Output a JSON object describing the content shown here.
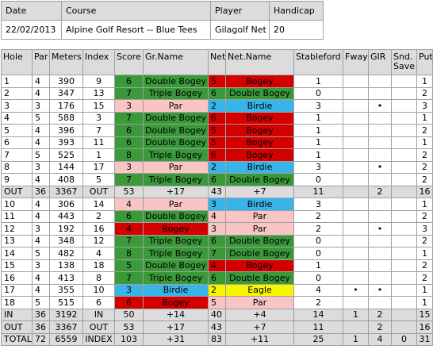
{
  "info": {
    "headers": [
      "Date",
      "Course",
      "Player",
      "Handicap"
    ],
    "values": [
      "22/02/2013",
      "Alpine Golf Resort -- Blue Tees",
      "Gilagolf Net",
      "20"
    ]
  },
  "columns": [
    "Hole",
    "Par",
    "Meters",
    "Index",
    "Score",
    "Gr.Name",
    "Net",
    "Net.Name",
    "Stableford",
    "Fway",
    "GIR",
    "Snd. Save",
    "Putt"
  ],
  "rows": [
    {
      "hole": "1",
      "par": "4",
      "meters": "390",
      "index": "9",
      "score": "6",
      "gr_name": "Double Bogey",
      "net": "5",
      "net_name": "Bogey",
      "stableford": "1",
      "fway": "",
      "gir": "",
      "snd": "",
      "putt": "1",
      "sc": "g",
      "nc": "rd"
    },
    {
      "hole": "2",
      "par": "4",
      "meters": "347",
      "index": "13",
      "score": "7",
      "gr_name": "Triple Bogey",
      "net": "6",
      "net_name": "Double Bogey",
      "stableford": "0",
      "fway": "",
      "gir": "",
      "snd": "",
      "putt": "2",
      "sc": "g",
      "nc": "g"
    },
    {
      "hole": "3",
      "par": "3",
      "meters": "176",
      "index": "15",
      "score": "3",
      "gr_name": "Par",
      "net": "2",
      "net_name": "Birdie",
      "stableford": "3",
      "fway": "",
      "gir": "•",
      "snd": "",
      "putt": "3",
      "sc": "pk",
      "nc": "bl"
    },
    {
      "hole": "4",
      "par": "5",
      "meters": "588",
      "index": "3",
      "score": "7",
      "gr_name": "Double Bogey",
      "net": "6",
      "net_name": "Bogey",
      "stableford": "1",
      "fway": "",
      "gir": "",
      "snd": "",
      "putt": "1",
      "sc": "g",
      "nc": "rd"
    },
    {
      "hole": "5",
      "par": "4",
      "meters": "396",
      "index": "7",
      "score": "6",
      "gr_name": "Double Bogey",
      "net": "5",
      "net_name": "Bogey",
      "stableford": "1",
      "fway": "",
      "gir": "",
      "snd": "",
      "putt": "2",
      "sc": "g",
      "nc": "rd"
    },
    {
      "hole": "6",
      "par": "4",
      "meters": "393",
      "index": "11",
      "score": "6",
      "gr_name": "Double Bogey",
      "net": "5",
      "net_name": "Bogey",
      "stableford": "1",
      "fway": "",
      "gir": "",
      "snd": "",
      "putt": "1",
      "sc": "g",
      "nc": "rd"
    },
    {
      "hole": "7",
      "par": "5",
      "meters": "525",
      "index": "1",
      "score": "8",
      "gr_name": "Triple Bogey",
      "net": "6",
      "net_name": "Bogey",
      "stableford": "1",
      "fway": "",
      "gir": "",
      "snd": "",
      "putt": "2",
      "sc": "g",
      "nc": "rd"
    },
    {
      "hole": "8",
      "par": "3",
      "meters": "144",
      "index": "17",
      "score": "3",
      "gr_name": "Par",
      "net": "2",
      "net_name": "Birdie",
      "stableford": "3",
      "fway": "",
      "gir": "•",
      "snd": "",
      "putt": "2",
      "sc": "pk",
      "nc": "bl"
    },
    {
      "hole": "9",
      "par": "4",
      "meters": "408",
      "index": "5",
      "score": "7",
      "gr_name": "Triple Bogey",
      "net": "6",
      "net_name": "Double Bogey",
      "stableford": "0",
      "fway": "",
      "gir": "",
      "snd": "",
      "putt": "2",
      "sc": "g",
      "nc": "g"
    },
    {
      "hole": "OUT",
      "par": "36",
      "meters": "3367",
      "index": "OUT",
      "score": "53",
      "gr_name": "+17",
      "net": "43",
      "net_name": "+7",
      "stableford": "11",
      "fway": "",
      "gir": "2",
      "snd": "",
      "putt": "16",
      "sum": true
    },
    {
      "hole": "10",
      "par": "4",
      "meters": "306",
      "index": "14",
      "score": "4",
      "gr_name": "Par",
      "net": "3",
      "net_name": "Birdie",
      "stableford": "3",
      "fway": "",
      "gir": "",
      "snd": "",
      "putt": "1",
      "sc": "pk",
      "nc": "bl"
    },
    {
      "hole": "11",
      "par": "4",
      "meters": "443",
      "index": "2",
      "score": "6",
      "gr_name": "Double Bogey",
      "net": "4",
      "net_name": "Par",
      "stableford": "2",
      "fway": "",
      "gir": "",
      "snd": "",
      "putt": "2",
      "sc": "g",
      "nc": "pk"
    },
    {
      "hole": "12",
      "par": "3",
      "meters": "192",
      "index": "16",
      "score": "4",
      "gr_name": "Bogey",
      "net": "3",
      "net_name": "Par",
      "stableford": "2",
      "fway": "",
      "gir": "•",
      "snd": "",
      "putt": "3",
      "sc": "rd",
      "nc": "pk"
    },
    {
      "hole": "13",
      "par": "4",
      "meters": "348",
      "index": "12",
      "score": "7",
      "gr_name": "Triple Bogey",
      "net": "6",
      "net_name": "Double Bogey",
      "stableford": "0",
      "fway": "",
      "gir": "",
      "snd": "",
      "putt": "2",
      "sc": "g",
      "nc": "g"
    },
    {
      "hole": "14",
      "par": "5",
      "meters": "482",
      "index": "4",
      "score": "8",
      "gr_name": "Triple Bogey",
      "net": "7",
      "net_name": "Double Bogey",
      "stableford": "0",
      "fway": "",
      "gir": "",
      "snd": "",
      "putt": "1",
      "sc": "g",
      "nc": "g"
    },
    {
      "hole": "15",
      "par": "3",
      "meters": "138",
      "index": "18",
      "score": "5",
      "gr_name": "Double Bogey",
      "net": "4",
      "net_name": "Bogey",
      "stableford": "1",
      "fway": "",
      "gir": "",
      "snd": "",
      "putt": "2",
      "sc": "g",
      "nc": "rd"
    },
    {
      "hole": "16",
      "par": "4",
      "meters": "413",
      "index": "8",
      "score": "7",
      "gr_name": "Triple Bogey",
      "net": "6",
      "net_name": "Double Bogey",
      "stableford": "0",
      "fway": "",
      "gir": "",
      "snd": "",
      "putt": "2",
      "sc": "g",
      "nc": "g"
    },
    {
      "hole": "17",
      "par": "4",
      "meters": "355",
      "index": "10",
      "score": "3",
      "gr_name": "Birdie",
      "net": "2",
      "net_name": "Eagle",
      "stableford": "4",
      "fway": "•",
      "gir": "•",
      "snd": "",
      "putt": "1",
      "sc": "bl",
      "nc": "yw"
    },
    {
      "hole": "18",
      "par": "5",
      "meters": "515",
      "index": "6",
      "score": "6",
      "gr_name": "Bogey",
      "net": "5",
      "net_name": "Par",
      "stableford": "2",
      "fway": "",
      "gir": "",
      "snd": "",
      "putt": "1",
      "sc": "rd",
      "nc": "pk"
    },
    {
      "hole": "IN",
      "par": "36",
      "meters": "3192",
      "index": "IN",
      "score": "50",
      "gr_name": "+14",
      "net": "40",
      "net_name": "+4",
      "stableford": "14",
      "fway": "1",
      "gir": "2",
      "snd": "",
      "putt": "15",
      "sum": true
    },
    {
      "hole": "OUT",
      "par": "36",
      "meters": "3367",
      "index": "OUT",
      "score": "53",
      "gr_name": "+17",
      "net": "43",
      "net_name": "+7",
      "stableford": "11",
      "fway": "",
      "gir": "2",
      "snd": "",
      "putt": "16",
      "sum": true
    },
    {
      "hole": "TOTAL",
      "par": "72",
      "meters": "6559",
      "index": "INDEX",
      "score": "103",
      "gr_name": "+31",
      "net": "83",
      "net_name": "+11",
      "stableford": "25",
      "fway": "1",
      "gir": "4",
      "snd": "0",
      "putt": "31",
      "sum": true
    }
  ]
}
